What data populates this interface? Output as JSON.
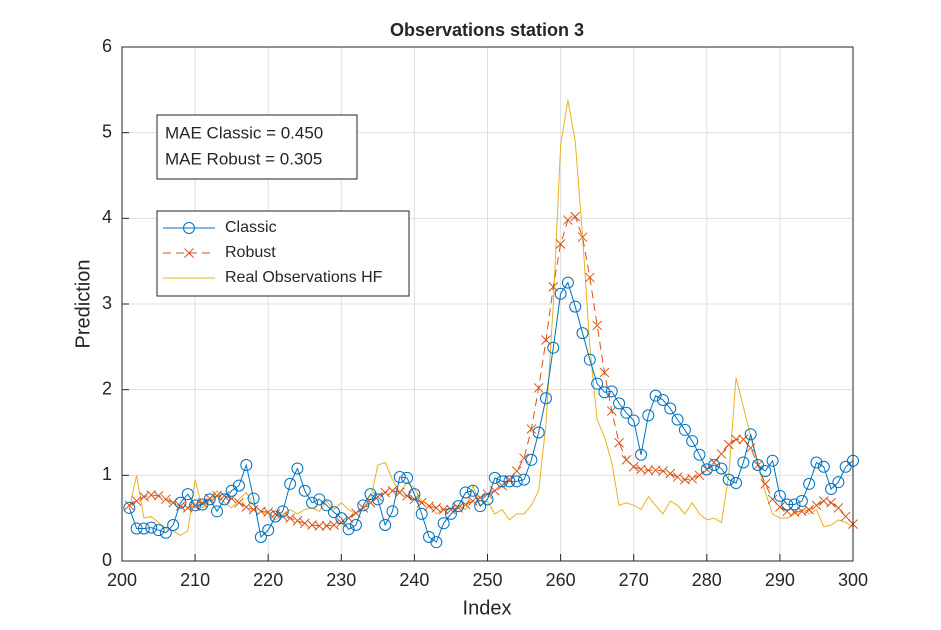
{
  "chart_data": {
    "type": "line",
    "title": "Observations station 3",
    "xlabel": "Index",
    "ylabel": "Prediction",
    "x": [
      201,
      202,
      203,
      204,
      205,
      206,
      207,
      208,
      209,
      210,
      211,
      212,
      213,
      214,
      215,
      216,
      217,
      218,
      219,
      220,
      221,
      222,
      223,
      224,
      225,
      226,
      227,
      228,
      229,
      230,
      231,
      232,
      233,
      234,
      235,
      236,
      237,
      238,
      239,
      240,
      241,
      242,
      243,
      244,
      245,
      246,
      247,
      248,
      249,
      250,
      251,
      252,
      253,
      254,
      255,
      256,
      257,
      258,
      259,
      260,
      261,
      262,
      263,
      264,
      265,
      266,
      267,
      268,
      269,
      270,
      271,
      272,
      273,
      274,
      275,
      276,
      277,
      278,
      279,
      280,
      281,
      282,
      283,
      284,
      285,
      286,
      287,
      288,
      289,
      290,
      291,
      292,
      293,
      294,
      295,
      296,
      297,
      298,
      299,
      300
    ],
    "series": [
      {
        "name": "Classic",
        "color": "#0072BD",
        "marker": "o",
        "line_style": "solid",
        "values": [
          0.62,
          0.38,
          0.38,
          0.39,
          0.36,
          0.33,
          0.42,
          0.68,
          0.78,
          0.65,
          0.66,
          0.72,
          0.58,
          0.72,
          0.82,
          0.88,
          1.12,
          0.73,
          0.28,
          0.36,
          0.52,
          0.58,
          0.9,
          1.08,
          0.82,
          0.68,
          0.72,
          0.65,
          0.57,
          0.5,
          0.37,
          0.42,
          0.65,
          0.78,
          0.72,
          0.42,
          0.58,
          0.98,
          0.97,
          0.78,
          0.55,
          0.28,
          0.22,
          0.44,
          0.55,
          0.64,
          0.8,
          0.82,
          0.64,
          0.72,
          0.97,
          0.93,
          0.93,
          0.93,
          0.95,
          1.18,
          1.5,
          1.9,
          2.49,
          3.12,
          3.25,
          2.97,
          2.66,
          2.35,
          2.07,
          1.97,
          1.98,
          1.84,
          1.73,
          1.64,
          1.24,
          1.7,
          1.93,
          1.88,
          1.78,
          1.65,
          1.53,
          1.4,
          1.24,
          1.07,
          1.12,
          1.08,
          0.95,
          0.91,
          1.15,
          1.48,
          1.12,
          1.05,
          1.17,
          0.76,
          0.66,
          0.66,
          0.7,
          0.9,
          1.15,
          1.1,
          0.84,
          0.92,
          1.1,
          1.17
        ]
      },
      {
        "name": "Robust",
        "color": "#D95319",
        "marker": "x",
        "line_style": "dashed",
        "values": [
          0.65,
          0.7,
          0.75,
          0.77,
          0.76,
          0.72,
          0.68,
          0.64,
          0.62,
          0.64,
          0.68,
          0.73,
          0.76,
          0.76,
          0.73,
          0.68,
          0.63,
          0.6,
          0.58,
          0.57,
          0.55,
          0.52,
          0.5,
          0.47,
          0.44,
          0.42,
          0.41,
          0.41,
          0.42,
          0.45,
          0.5,
          0.56,
          0.62,
          0.68,
          0.75,
          0.8,
          0.82,
          0.8,
          0.76,
          0.72,
          0.68,
          0.64,
          0.62,
          0.6,
          0.6,
          0.62,
          0.66,
          0.7,
          0.74,
          0.78,
          0.82,
          0.88,
          0.95,
          1.05,
          1.2,
          1.54,
          2.02,
          2.58,
          3.2,
          3.7,
          3.98,
          4.02,
          3.78,
          3.31,
          2.75,
          2.2,
          1.75,
          1.38,
          1.18,
          1.1,
          1.07,
          1.06,
          1.06,
          1.05,
          1.02,
          0.98,
          0.95,
          0.96,
          1.0,
          1.07,
          1.15,
          1.25,
          1.36,
          1.42,
          1.42,
          1.32,
          1.12,
          0.9,
          0.72,
          0.63,
          0.58,
          0.57,
          0.58,
          0.6,
          0.65,
          0.7,
          0.68,
          0.62,
          0.52,
          0.43
        ]
      },
      {
        "name": "Real Observations HF",
        "color": "#EDB120",
        "marker": "none",
        "line_style": "solid",
        "values": [
          0.62,
          1.0,
          0.5,
          0.52,
          0.45,
          0.38,
          0.35,
          0.3,
          0.35,
          0.95,
          0.62,
          0.7,
          0.82,
          0.68,
          0.62,
          0.72,
          0.8,
          0.65,
          0.58,
          0.55,
          0.48,
          0.55,
          0.6,
          0.55,
          0.6,
          0.62,
          0.58,
          0.7,
          0.6,
          0.68,
          0.6,
          0.55,
          0.62,
          0.72,
          1.12,
          1.15,
          0.95,
          0.8,
          0.92,
          0.85,
          0.7,
          0.65,
          0.55,
          0.6,
          0.62,
          0.65,
          0.6,
          0.88,
          0.65,
          0.7,
          0.55,
          0.6,
          0.48,
          0.55,
          0.55,
          0.65,
          0.82,
          1.6,
          3.0,
          4.85,
          5.38,
          4.9,
          3.8,
          2.5,
          1.65,
          1.45,
          1.15,
          0.65,
          0.68,
          0.65,
          0.6,
          0.75,
          0.65,
          0.55,
          0.7,
          0.65,
          0.55,
          0.68,
          0.55,
          0.48,
          0.5,
          0.45,
          1.0,
          2.14,
          1.8,
          1.45,
          1.15,
          0.8,
          0.55,
          0.5,
          0.5,
          0.55,
          0.6,
          0.55,
          0.6,
          0.4,
          0.42,
          0.48,
          0.45,
          0.4
        ]
      }
    ],
    "xlim": [
      200,
      300
    ],
    "xticks": [
      200,
      210,
      220,
      230,
      240,
      250,
      260,
      270,
      280,
      290,
      300
    ],
    "ylim": [
      0,
      6
    ],
    "yticks": [
      0,
      1,
      2,
      3,
      4,
      5,
      6
    ],
    "grid": true,
    "annotations": [
      "MAE Classic = 0.450",
      "MAE Robust = 0.305"
    ],
    "legend_position": "west"
  }
}
